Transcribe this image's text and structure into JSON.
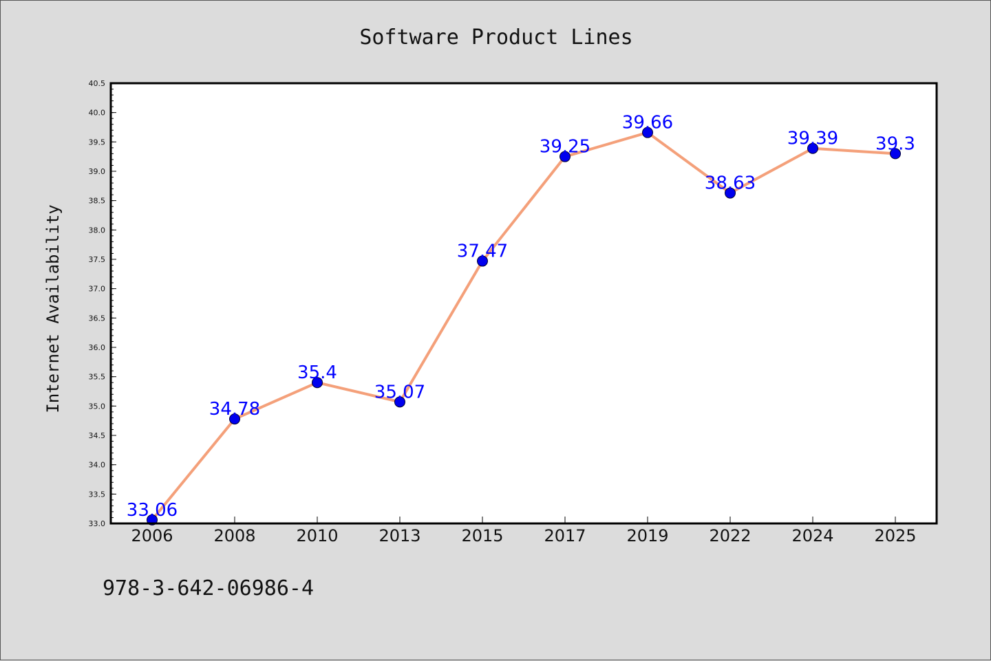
{
  "chart_data": {
    "type": "line",
    "title": "Software Product Lines",
    "xlabel": "",
    "ylabel": "Internet Availability",
    "categories": [
      "2006",
      "2008",
      "2010",
      "2013",
      "2015",
      "2017",
      "2019",
      "2022",
      "2024",
      "2025"
    ],
    "values": [
      33.06,
      34.78,
      35.4,
      35.07,
      37.47,
      39.25,
      39.66,
      38.63,
      39.39,
      39.3
    ],
    "data_labels": [
      "33.06",
      "34.78",
      "35.4",
      "35.07",
      "37.47",
      "39.25",
      "39.66",
      "38.63",
      "39.39",
      "39.3"
    ],
    "ylim": [
      33.0,
      40.5
    ],
    "yticks": [
      "33.0",
      "33.5",
      "34.0",
      "34.5",
      "35.0",
      "35.5",
      "36.0",
      "36.5",
      "37.0",
      "37.5",
      "38.0",
      "38.5",
      "39.0",
      "39.5",
      "40.0",
      "40.5"
    ],
    "grid": false,
    "legend": "none",
    "colors": {
      "line": "#f4a07a",
      "marker": "#0000ee",
      "data_label": "#0000ff",
      "background": "#dcdcdc",
      "plot_area": "#ffffff"
    }
  },
  "footer": {
    "code": "978-3-642-06986-4"
  }
}
